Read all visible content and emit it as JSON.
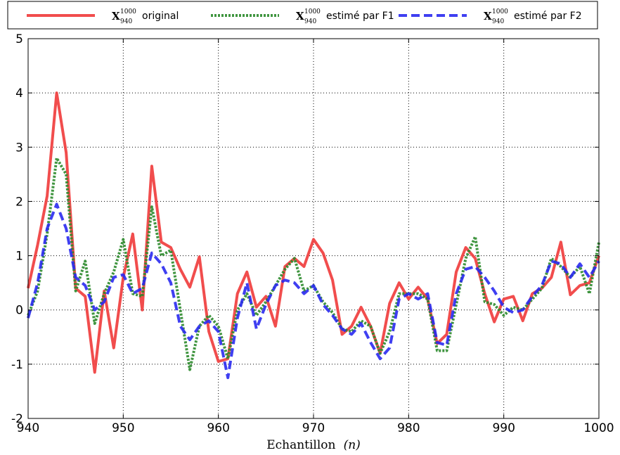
{
  "chart_data": {
    "type": "line",
    "title": "",
    "xlabel_text": "Echantillon",
    "xlabel_math": "(n)",
    "ylabel": "",
    "xlim": [
      940,
      1000
    ],
    "ylim": [
      -2,
      5
    ],
    "xticks": [
      940,
      950,
      960,
      970,
      980,
      990,
      1000
    ],
    "yticks": [
      -2,
      -1,
      0,
      1,
      2,
      3,
      4,
      5
    ],
    "grid": true,
    "legend_position": "top, outside plot",
    "x": [
      940,
      941,
      942,
      943,
      944,
      945,
      946,
      947,
      948,
      949,
      950,
      951,
      952,
      953,
      954,
      955,
      956,
      957,
      958,
      959,
      960,
      961,
      962,
      963,
      964,
      965,
      966,
      967,
      968,
      969,
      970,
      971,
      972,
      973,
      974,
      975,
      976,
      977,
      978,
      979,
      980,
      981,
      982,
      983,
      984,
      985,
      986,
      987,
      988,
      989,
      990,
      991,
      992,
      993,
      994,
      995,
      996,
      997,
      998,
      999,
      1000
    ],
    "series": [
      {
        "name": "X original",
        "legend_symbol": "X",
        "legend_superscript": "1000",
        "legend_subscript": "940",
        "legend_text": "original",
        "color": "#f03a3a",
        "dash": "",
        "values": [
          0.4,
          1.2,
          2.1,
          4.0,
          2.9,
          0.4,
          0.25,
          -1.15,
          0.35,
          -0.7,
          0.6,
          1.4,
          0.0,
          2.65,
          1.25,
          1.15,
          0.75,
          0.42,
          0.98,
          -0.4,
          -0.95,
          -0.9,
          0.3,
          0.7,
          0.05,
          0.25,
          -0.3,
          0.8,
          0.95,
          0.8,
          1.3,
          1.05,
          0.55,
          -0.45,
          -0.3,
          0.05,
          -0.3,
          -0.8,
          0.12,
          0.5,
          0.2,
          0.42,
          0.2,
          -0.62,
          -0.45,
          0.7,
          1.15,
          0.95,
          0.3,
          -0.22,
          0.2,
          0.25,
          -0.2,
          0.3,
          0.4,
          0.6,
          1.25,
          0.28,
          0.45,
          0.5,
          1.0
        ]
      },
      {
        "name": "X estimé par F1",
        "legend_symbol": "X",
        "legend_superscript": "1000",
        "legend_subscript": "940",
        "legend_text": "estimé par F1",
        "color": "#2b8a2b",
        "dash": "3,2",
        "values": [
          -0.1,
          0.35,
          1.4,
          2.8,
          2.5,
          0.35,
          0.9,
          -0.25,
          0.3,
          0.7,
          1.3,
          0.3,
          0.25,
          1.9,
          1.0,
          1.1,
          0.0,
          -1.1,
          -0.3,
          -0.1,
          -0.3,
          -0.9,
          0.0,
          0.3,
          -0.1,
          0.15,
          0.45,
          0.75,
          0.95,
          0.35,
          0.45,
          0.15,
          -0.05,
          -0.35,
          -0.4,
          -0.2,
          -0.3,
          -0.8,
          -0.4,
          0.3,
          0.3,
          0.3,
          0.2,
          -0.75,
          -0.75,
          0.1,
          0.95,
          1.35,
          0.15,
          0.1,
          -0.1,
          0.05,
          0.0,
          0.2,
          0.4,
          0.95,
          0.8,
          0.6,
          0.8,
          0.3,
          1.25
        ]
      },
      {
        "name": "X estimé par F2",
        "legend_symbol": "X",
        "legend_superscript": "1000",
        "legend_subscript": "940",
        "legend_text": "estimé par F2",
        "color": "#2a2af0",
        "dash": "12,6",
        "values": [
          -0.15,
          0.5,
          1.5,
          1.95,
          1.5,
          0.6,
          0.45,
          0.0,
          0.15,
          0.6,
          0.65,
          0.3,
          0.4,
          1.05,
          0.85,
          0.5,
          -0.3,
          -0.55,
          -0.3,
          -0.2,
          -0.4,
          -1.25,
          -0.15,
          0.5,
          -0.35,
          0.1,
          0.45,
          0.55,
          0.5,
          0.3,
          0.45,
          0.1,
          -0.1,
          -0.35,
          -0.45,
          -0.25,
          -0.6,
          -0.9,
          -0.7,
          0.2,
          0.3,
          0.2,
          0.3,
          -0.6,
          -0.65,
          0.3,
          0.75,
          0.8,
          0.6,
          0.35,
          0.05,
          -0.05,
          0.0,
          0.25,
          0.45,
          0.9,
          0.85,
          0.6,
          0.85,
          0.6,
          0.9
        ]
      }
    ]
  }
}
